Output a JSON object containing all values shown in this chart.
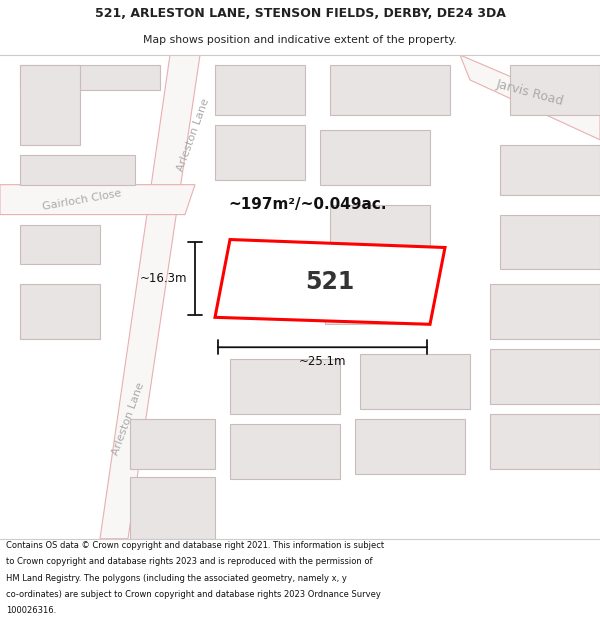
{
  "title_line1": "521, ARLESTON LANE, STENSON FIELDS, DERBY, DE24 3DA",
  "title_line2": "Map shows position and indicative extent of the property.",
  "footer_text": "Contains OS data © Crown copyright and database right 2021. This information is subject to Crown copyright and database rights 2023 and is reproduced with the permission of HM Land Registry. The polygons (including the associated geometry, namely x, y co-ordinates) are subject to Crown copyright and database rights 2023 Ordnance Survey 100026316.",
  "area_label": "~197m²/~0.049ac.",
  "number_label": "521",
  "width_label": "~25.1m",
  "height_label": "~16.3m",
  "map_bg": "#f9f6f6",
  "road_outline": "#e8b0b0",
  "road_fill": "#f9f6f6",
  "building_fill": "#e8e4e4",
  "building_edge": "#ccbbbb",
  "plot_fill": "#ffffff",
  "plot_edge": "#ff0000",
  "street_color": "#bbbbbb",
  "dim_color": "#111111",
  "title_color": "#222222",
  "footer_color": "#111111",
  "area_color": "#111111"
}
